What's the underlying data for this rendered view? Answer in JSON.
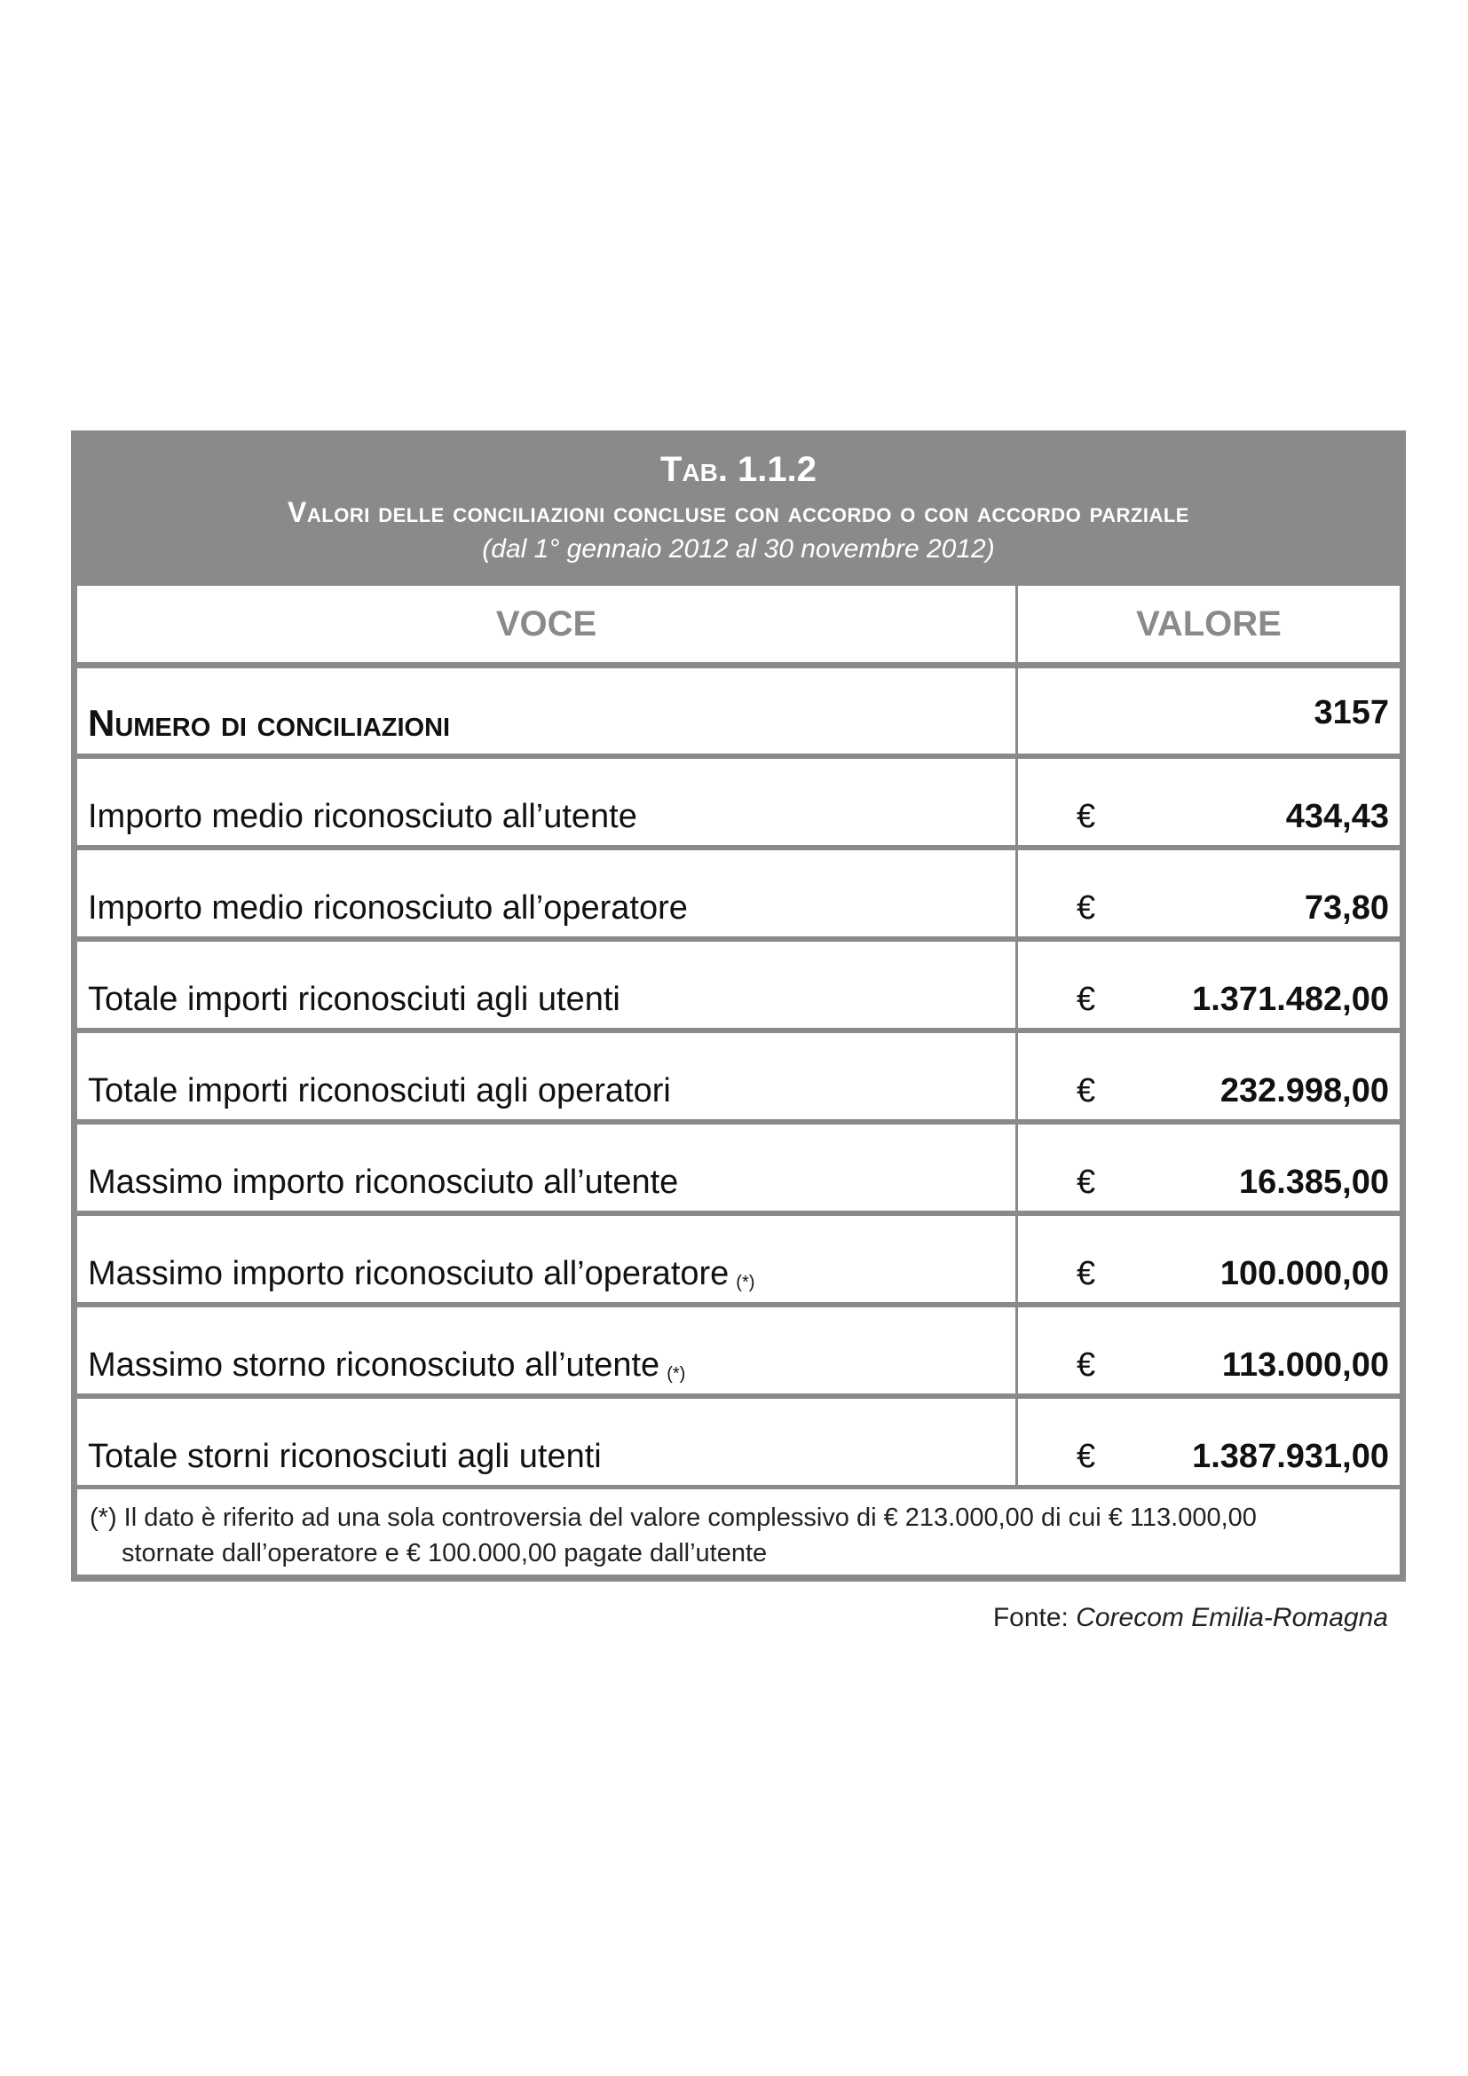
{
  "table": {
    "number": "Tab. 1.1.2",
    "title": "Valori delle conciliazioni concluse con accordo o con accordo parziale",
    "period": "(dal 1° gennaio 2012 al 30 novembre 2012)",
    "headers": {
      "voce": "VOCE",
      "valore": "VALORE"
    },
    "first_row": {
      "label": "Numero di conciliazioni",
      "value": "3157"
    },
    "currency": "€",
    "rows": [
      {
        "label": "Importo medio riconosciuto all’utente",
        "note": "",
        "value": "434,43"
      },
      {
        "label": "Importo medio riconosciuto all’operatore",
        "note": "",
        "value": "73,80"
      },
      {
        "label": "Totale importi riconosciuti agli utenti",
        "note": "",
        "value": "1.371.482,00"
      },
      {
        "label": "Totale importi riconosciuti agli operatori",
        "note": "",
        "value": "232.998,00"
      },
      {
        "label": "Massimo importo riconosciuto all’utente",
        "note": "",
        "value": "16.385,00"
      },
      {
        "label": "Massimo importo riconosciuto all’operatore",
        "note": "(*)",
        "value": "100.000,00"
      },
      {
        "label": "Massimo storno riconosciuto all’utente",
        "note": "(*)",
        "value": "113.000,00"
      },
      {
        "label": "Totale storni riconosciuti agli utenti",
        "note": "",
        "value": "1.387.931,00"
      }
    ],
    "footnote_line1": "(*) Il dato è riferito ad una sola controversia del valore complessivo di € 213.000,00 di cui € 113.000,00",
    "footnote_line2": "stornate dall’operatore e € 100.000,00 pagate dall’utente"
  },
  "source": {
    "prefix": "Fonte: ",
    "name": "Corecom Emilia-Romagna"
  }
}
